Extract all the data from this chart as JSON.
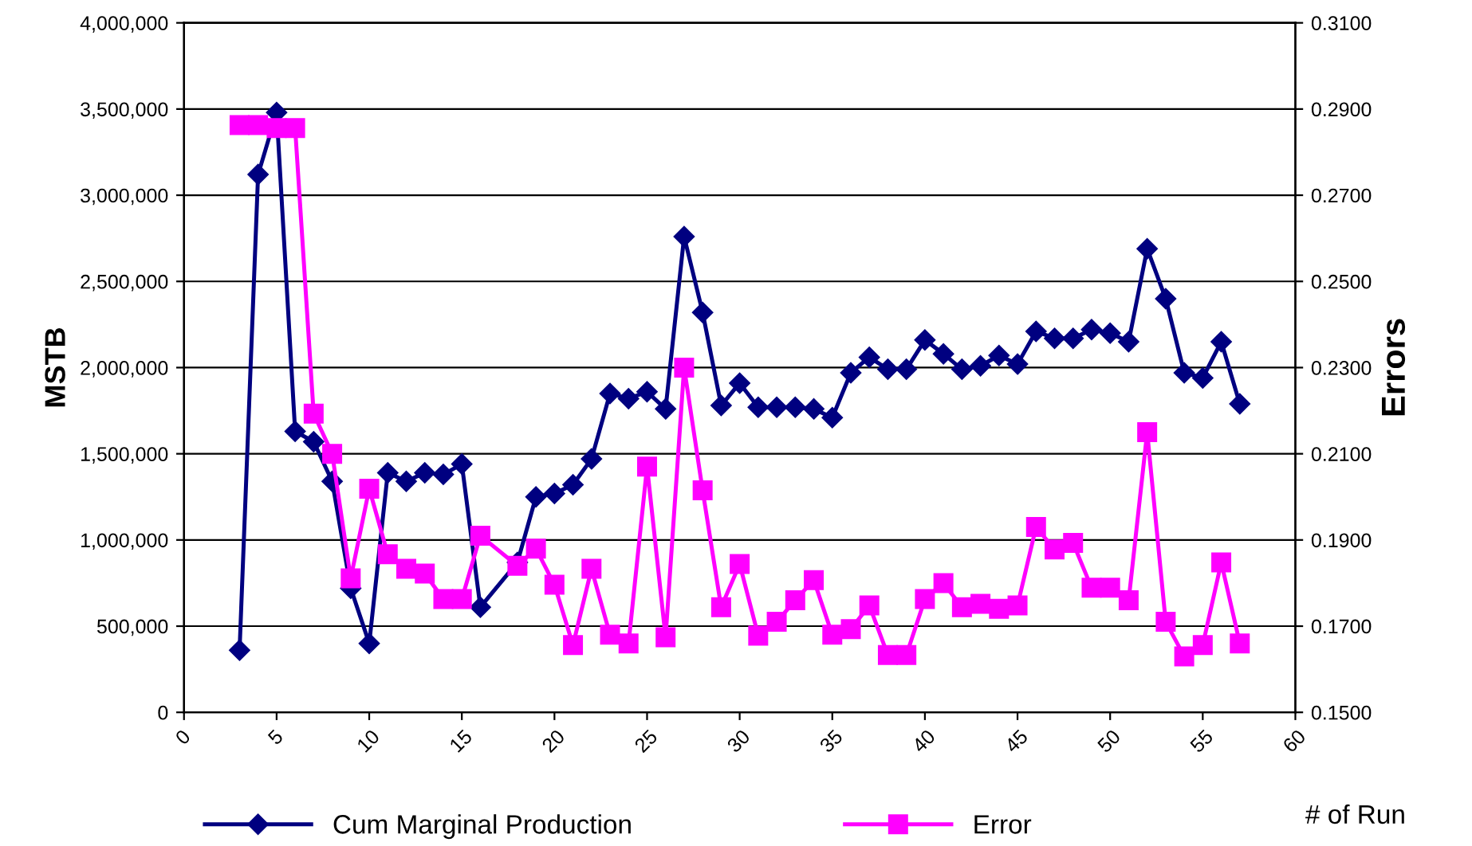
{
  "chart_data": {
    "type": "line",
    "xlabel": "# of Run",
    "ylabel": "MSTB",
    "y2label": "Errors",
    "xlim": [
      0,
      60
    ],
    "xticks": [
      0,
      5,
      10,
      15,
      20,
      25,
      30,
      35,
      40,
      45,
      50,
      55,
      60
    ],
    "ylim": [
      0,
      4000000
    ],
    "yticks": [
      {
        "value": 0,
        "label": "0"
      },
      {
        "value": 500000,
        "label": "500,000"
      },
      {
        "value": 1000000,
        "label": "1,000,000"
      },
      {
        "value": 1500000,
        "label": "1,500,000"
      },
      {
        "value": 2000000,
        "label": "2,000,000"
      },
      {
        "value": 2500000,
        "label": "2,500,000"
      },
      {
        "value": 3000000,
        "label": "3,000,000"
      },
      {
        "value": 3500000,
        "label": "3,500,000"
      },
      {
        "value": 4000000,
        "label": "4,000,000"
      }
    ],
    "y2lim": [
      0.15,
      0.31
    ],
    "y2ticks": [
      {
        "value": 0.15,
        "label": "0.1500"
      },
      {
        "value": 0.17,
        "label": "0.1700"
      },
      {
        "value": 0.19,
        "label": "0.1900"
      },
      {
        "value": 0.21,
        "label": "0.2100"
      },
      {
        "value": 0.23,
        "label": "0.2300"
      },
      {
        "value": 0.25,
        "label": "0.2500"
      },
      {
        "value": 0.27,
        "label": "0.2700"
      },
      {
        "value": 0.29,
        "label": "0.2900"
      },
      {
        "value": 0.31,
        "label": "0.3100"
      }
    ],
    "grid": "y",
    "legend": "bottom",
    "series": [
      {
        "name": "Cum Marginal Production",
        "color": "#000080",
        "marker": "diamond",
        "x": [
          3,
          4,
          5,
          6,
          7,
          8,
          9,
          10,
          11,
          12,
          13,
          14,
          15,
          16,
          18,
          19,
          20,
          21,
          22,
          23,
          24,
          25,
          26,
          27,
          28,
          29,
          30,
          31,
          32,
          33,
          34,
          35,
          36,
          37,
          38,
          39,
          40,
          41,
          42,
          43,
          44,
          45,
          46,
          47,
          48,
          49,
          50,
          51,
          52,
          53,
          54,
          55,
          56,
          57
        ],
        "values": [
          360000,
          3120000,
          3480000,
          1630000,
          1570000,
          1340000,
          720000,
          400000,
          1390000,
          1340000,
          1390000,
          1380000,
          1440000,
          610000,
          870000,
          1250000,
          1270000,
          1320000,
          1470000,
          1850000,
          1820000,
          1860000,
          1760000,
          2760000,
          2320000,
          1780000,
          1910000,
          1770000,
          1770000,
          1770000,
          1760000,
          1710000,
          1970000,
          2060000,
          1990000,
          1990000,
          2160000,
          2080000,
          1990000,
          2010000,
          2070000,
          2020000,
          2210000,
          2170000,
          2170000,
          2220000,
          2200000,
          2150000,
          2690000,
          2400000,
          1970000,
          1940000,
          2150000,
          1790000
        ]
      },
      {
        "name": "Error",
        "color": "#ff00ff",
        "marker": "square",
        "axis": "y2",
        "x": [
          3,
          4,
          5,
          6,
          7,
          8,
          9,
          10,
          11,
          12,
          13,
          14,
          15,
          16,
          18,
          19,
          20,
          21,
          22,
          23,
          24,
          25,
          26,
          27,
          28,
          29,
          30,
          31,
          32,
          33,
          34,
          35,
          36,
          37,
          38,
          39,
          40,
          41,
          42,
          43,
          44,
          45,
          46,
          47,
          48,
          49,
          50,
          51,
          52,
          53,
          54,
          55,
          56,
          57
        ],
        "values": [
          0.2863,
          0.2863,
          0.2856,
          0.2856,
          0.2193,
          0.21,
          0.1811,
          0.2019,
          0.1867,
          0.1833,
          0.1822,
          0.1763,
          0.1763,
          0.191,
          0.184,
          0.188,
          0.1796,
          0.1656,
          0.1833,
          0.168,
          0.166,
          0.207,
          0.1674,
          0.23,
          0.2015,
          0.1744,
          0.1844,
          0.1678,
          0.171,
          0.176,
          0.1807,
          0.168,
          0.1693,
          0.1748,
          0.1633,
          0.1633,
          0.1763,
          0.18,
          0.1744,
          0.1752,
          0.174,
          0.1748,
          0.193,
          0.1878,
          0.1893,
          0.1789,
          0.1789,
          0.176,
          0.215,
          0.171,
          0.163,
          0.1656,
          0.1848,
          0.166
        ]
      }
    ]
  }
}
